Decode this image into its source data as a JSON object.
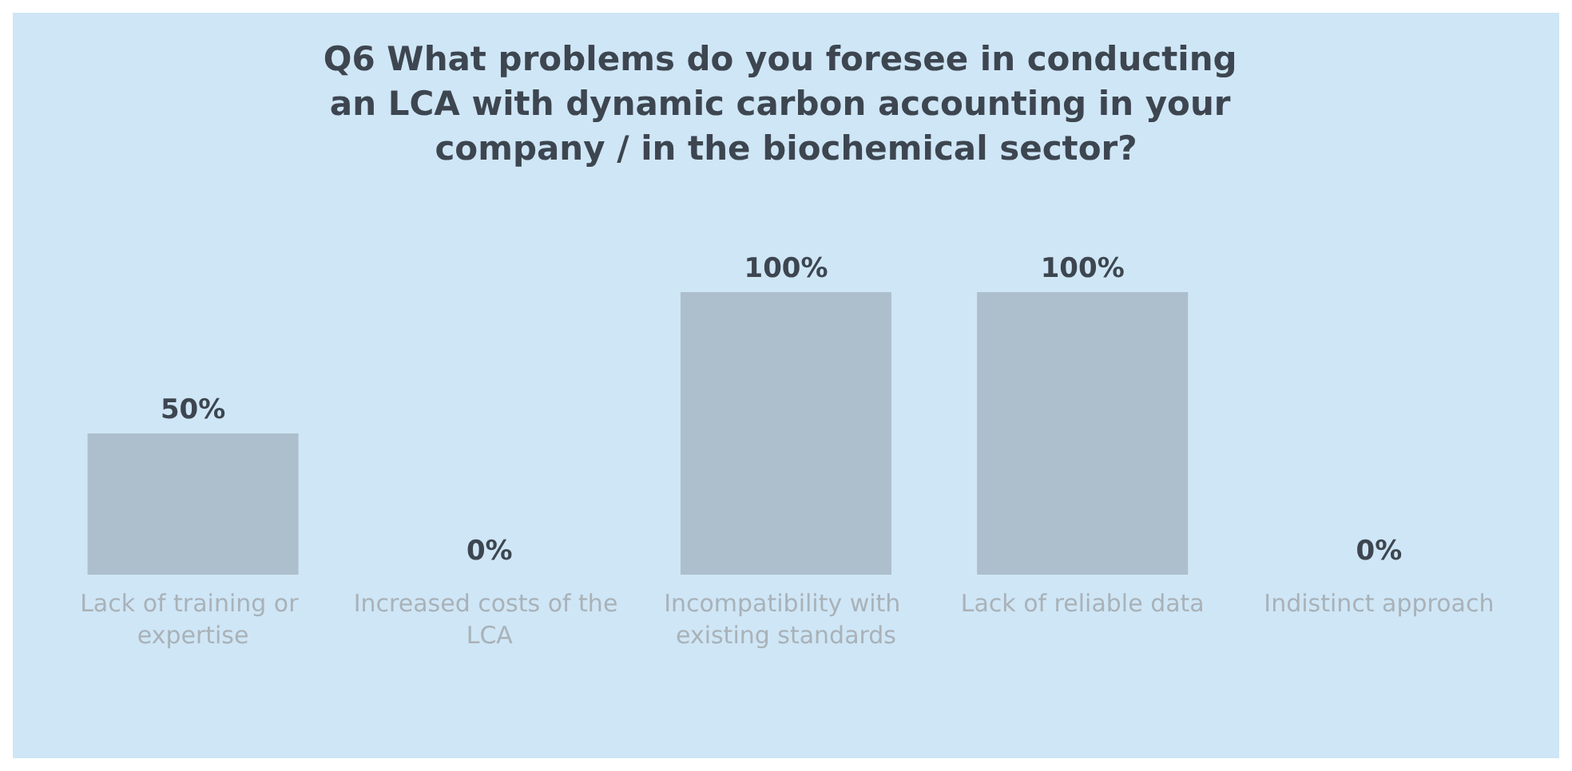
{
  "chart_data": {
    "type": "bar",
    "title": "Q6 What problems do you foresee in conducting an LCA with dynamic carbon accounting in your company / in the biochemical sector?",
    "categories": [
      "Lack of training or expertise",
      "Increased costs of the LCA",
      "Incompatibility with existing standards",
      "Lack of reliable data",
      "Indistinct approach"
    ],
    "values": [
      50,
      0,
      100,
      100,
      0
    ],
    "value_labels": [
      "50%",
      "0%",
      "100%",
      "100%",
      "0%"
    ],
    "color": "#adbfcd",
    "tick_labels": "x"
  }
}
